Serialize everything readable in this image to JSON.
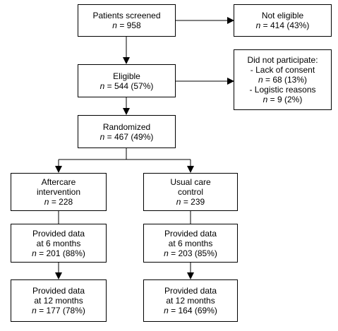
{
  "nodes": {
    "screened": {
      "title": "Patients screened",
      "n_label": "n",
      "n_value": " = 958"
    },
    "not_eligible": {
      "title": "Not eligible",
      "n_label": "n",
      "n_value": " = 414 (43%)"
    },
    "eligible": {
      "title": "Eligible",
      "n_label": "n",
      "n_value": " = 544 (57%)"
    },
    "not_participate": {
      "title": "Did not participate:",
      "item1": "- Lack of consent",
      "item1_n_label": "n",
      "item1_n_value": " = 68 (13%)",
      "item2": "- Logistic reasons",
      "item2_n_label": "n",
      "item2_n_value": " = 9 (2%)"
    },
    "randomized": {
      "title": "Randomized",
      "n_label": "n",
      "n_value": " = 467 (49%)"
    },
    "aftercare": {
      "line1": "Aftercare",
      "line2": "intervention",
      "n_label": "n",
      "n_value": " = 228"
    },
    "usual_care": {
      "line1": "Usual care",
      "line2": "control",
      "n_label": "n",
      "n_value": " = 239"
    },
    "after_6m": {
      "line1": "Provided data",
      "line2": "at 6 months",
      "n_label": "n",
      "n_value": " = 201 (88%)"
    },
    "usual_6m": {
      "line1": "Provided data",
      "line2": "at 6 months",
      "n_label": "n",
      "n_value": " = 203 (85%)"
    },
    "after_12m": {
      "line1": "Provided data",
      "line2": "at 12 months",
      "n_label": "n",
      "n_value": " = 177 (78%)"
    },
    "usual_12m": {
      "line1": "Provided data",
      "line2": "at 12 months",
      "n_label": "n",
      "n_value": " = 164 (69%)"
    }
  }
}
